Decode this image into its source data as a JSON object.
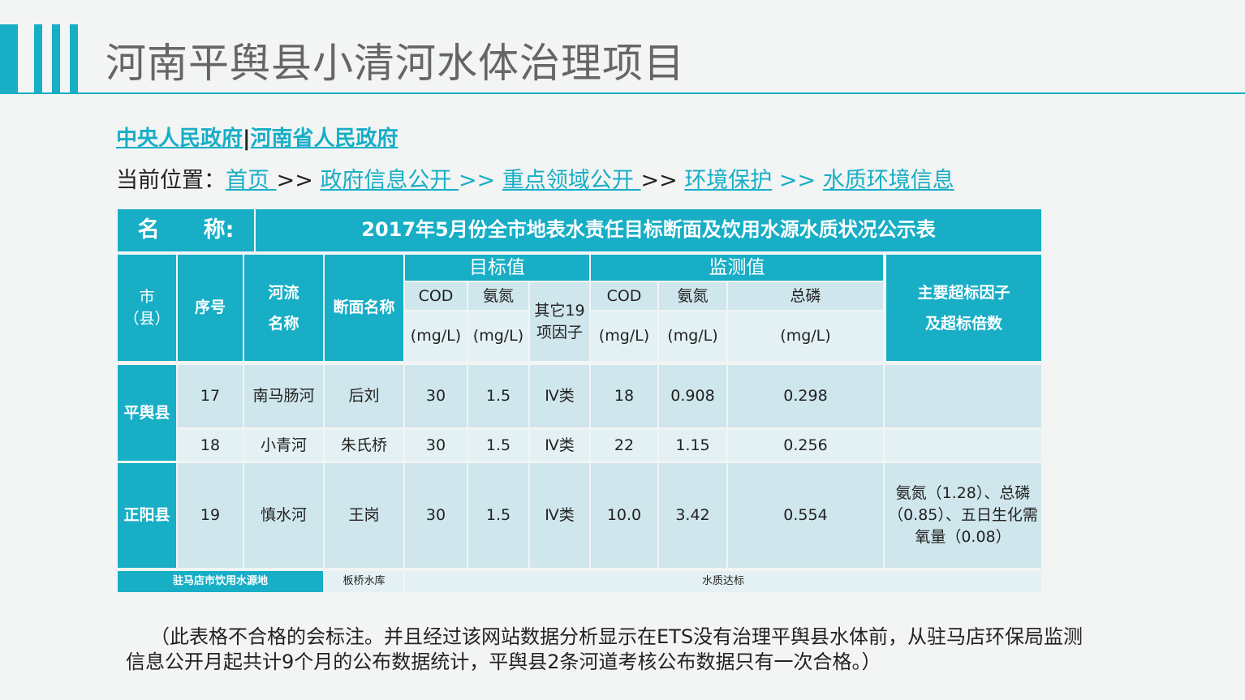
{
  "title": "河南平舆县小清河水体治理项目",
  "links": {
    "central": "中央人民政府",
    "sep": "|",
    "henan": "河南省人民政府"
  },
  "breadcrumb": {
    "prefix": "当前位置：",
    "items": [
      "首页 ",
      "政府信息公开 ",
      "重点领域公开 ",
      "环境保护",
      "水质环境信息"
    ],
    "sep": " >> "
  },
  "table": {
    "name_label": "名　　称:",
    "name": "2017年5月份全市地表水责任目标断面及饮用水源水质状况公示表",
    "headers": {
      "city": "市\n（县）",
      "no": "序号",
      "river": "河流\n名称",
      "section": "断面名称",
      "target": "目标值",
      "measured": "监测值",
      "exceed": "主要超标因子\n及超标倍数",
      "cod": "COD",
      "nh": "氨氮",
      "tp": "总磷",
      "unit": "(mg/L)",
      "other": "其它19\n项因子"
    },
    "groups": [
      {
        "city": "平舆县"
      },
      {
        "city": "正阳县"
      }
    ],
    "rows": [
      {
        "no": "17",
        "river": "南马肠河",
        "section": "后刘",
        "t_cod": "30",
        "t_nh": "1.5",
        "other": "Ⅳ类",
        "m_cod": "18",
        "m_nh": "0.908",
        "m_tp": "0.298",
        "exceed": ""
      },
      {
        "no": "18",
        "river": "小青河",
        "section": "朱氏桥",
        "t_cod": "30",
        "t_nh": "1.5",
        "other": "Ⅳ类",
        "m_cod": "22",
        "m_nh": "1.15",
        "m_tp": "0.256",
        "exceed": ""
      },
      {
        "no": "19",
        "river": "慎水河",
        "section": "王岗",
        "t_cod": "30",
        "t_nh": "1.5",
        "other": "Ⅳ类",
        "m_cod": "10.0",
        "m_nh": "3.42",
        "m_tp": "0.554",
        "exceed": "氨氮（1.28）、总磷（0.85）、五日生化需氧量（0.08）"
      }
    ],
    "footer": {
      "label": "驻马店市饮用水源地",
      "section": "板桥水库",
      "status": "水质达标"
    }
  },
  "note": "（此表格不合格的会标注。并且经过该网站数据分析显示在ETS没有治理平舆县水体前，从驻马店环保局监测信息公开月起共计9个月的公布数据统计，平舆县2条河道考核公布数据只有一次合格。）"
}
